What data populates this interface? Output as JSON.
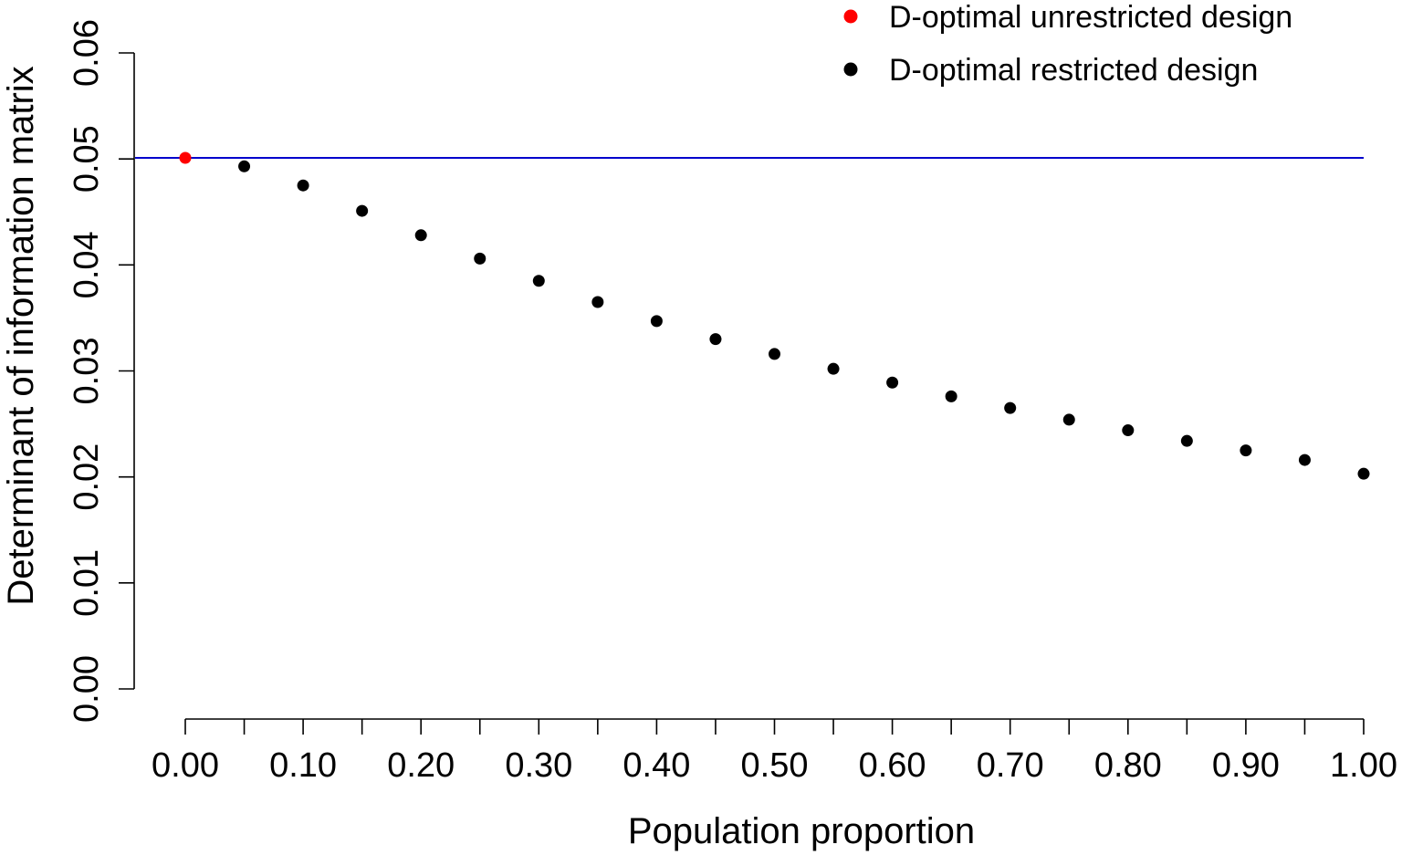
{
  "chart_data": {
    "type": "scatter",
    "xlabel": "Population proportion",
    "ylabel": "Determinant of information matrix",
    "xlim": [
      0.0,
      1.0
    ],
    "ylim": [
      0.0,
      0.06
    ],
    "x_ticks": [
      0.0,
      0.05,
      0.1,
      0.15,
      0.2,
      0.25,
      0.3,
      0.35,
      0.4,
      0.45,
      0.5,
      0.55,
      0.6,
      0.65,
      0.7,
      0.75,
      0.8,
      0.85,
      0.9,
      0.95,
      1.0
    ],
    "x_tick_labels": [
      "0.00",
      "0.10",
      "0.20",
      "0.30",
      "0.40",
      "0.50",
      "0.60",
      "0.70",
      "0.80",
      "0.90",
      "1.00"
    ],
    "x_tick_label_values": [
      0.0,
      0.1,
      0.2,
      0.3,
      0.4,
      0.5,
      0.6,
      0.7,
      0.8,
      0.9,
      1.0
    ],
    "y_ticks": [
      0.0,
      0.01,
      0.02,
      0.03,
      0.04,
      0.05,
      0.06
    ],
    "y_tick_labels": [
      "0.00",
      "0.01",
      "0.02",
      "0.03",
      "0.04",
      "0.05",
      "0.06"
    ],
    "grid": false,
    "legend_position": "top-right",
    "reference_line": {
      "y": 0.0501,
      "color": "#0000cc"
    },
    "series": [
      {
        "name": "D-optimal unrestricted design",
        "color": "#ff0000",
        "points": [
          {
            "x": 0.0,
            "y": 0.0501
          }
        ]
      },
      {
        "name": "D-optimal restricted design",
        "color": "#000000",
        "points": [
          {
            "x": 0.05,
            "y": 0.0493
          },
          {
            "x": 0.1,
            "y": 0.0475
          },
          {
            "x": 0.15,
            "y": 0.0451
          },
          {
            "x": 0.2,
            "y": 0.0428
          },
          {
            "x": 0.25,
            "y": 0.0406
          },
          {
            "x": 0.3,
            "y": 0.0385
          },
          {
            "x": 0.35,
            "y": 0.0365
          },
          {
            "x": 0.4,
            "y": 0.0347
          },
          {
            "x": 0.45,
            "y": 0.033
          },
          {
            "x": 0.5,
            "y": 0.0316
          },
          {
            "x": 0.55,
            "y": 0.0302
          },
          {
            "x": 0.6,
            "y": 0.0289
          },
          {
            "x": 0.65,
            "y": 0.0276
          },
          {
            "x": 0.7,
            "y": 0.0265
          },
          {
            "x": 0.75,
            "y": 0.0254
          },
          {
            "x": 0.8,
            "y": 0.0244
          },
          {
            "x": 0.85,
            "y": 0.0234
          },
          {
            "x": 0.9,
            "y": 0.0225
          },
          {
            "x": 0.95,
            "y": 0.0216
          },
          {
            "x": 1.0,
            "y": 0.0203
          }
        ]
      }
    ]
  }
}
